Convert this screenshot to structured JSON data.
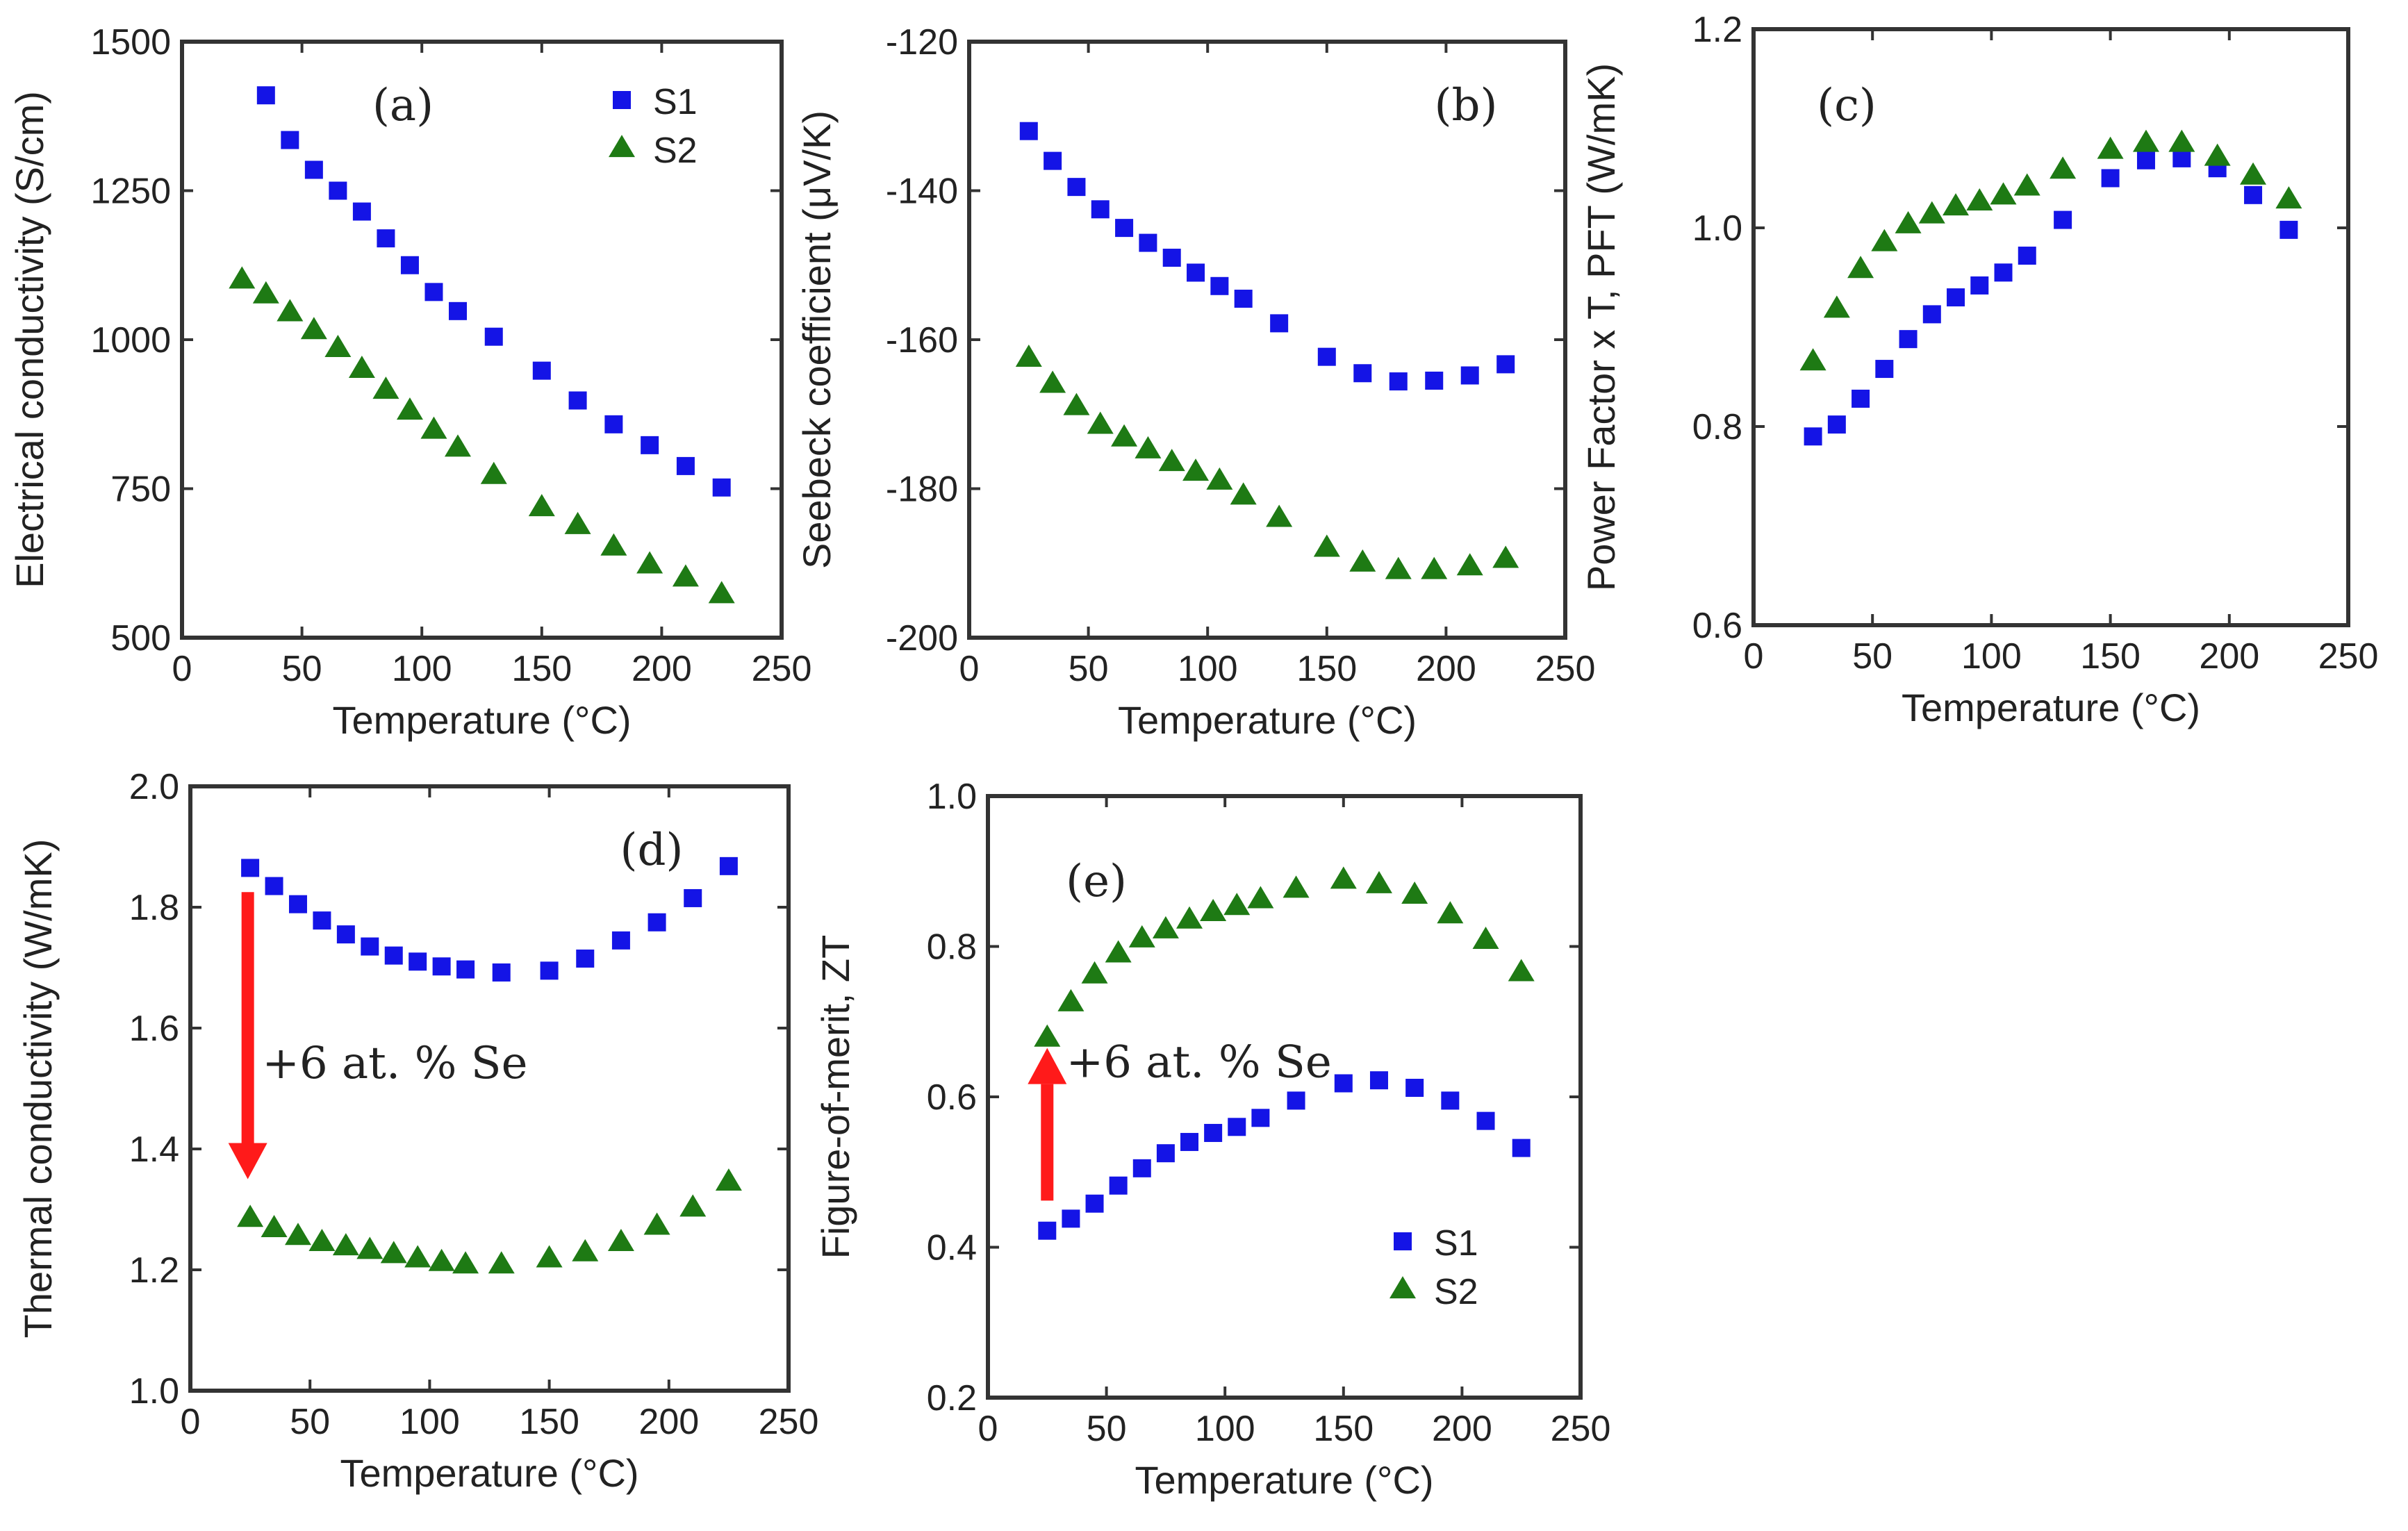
{
  "colors": {
    "s1": "#1414e6",
    "s2": "#1e7a14",
    "arrow": "#ff1a1a",
    "axis": "#333333"
  },
  "chart_data": [
    {
      "id": "a",
      "type": "scatter",
      "tag": "(a)",
      "xlabel": "Temperature (°C)",
      "ylabel": "Electrical conductivity (S/cm)",
      "xlim": [
        0,
        250
      ],
      "ylim": [
        500,
        1500
      ],
      "xticks": [
        0,
        50,
        100,
        150,
        200,
        250
      ],
      "yticks": [
        500,
        750,
        1000,
        1250,
        1500
      ],
      "legend": {
        "position": "top-right"
      },
      "series": [
        {
          "name": "S1",
          "marker": "square",
          "x": [
            35,
            45,
            55,
            65,
            75,
            85,
            95,
            105,
            115,
            130,
            150,
            165,
            180,
            195,
            210,
            225
          ],
          "y": [
            1410,
            1335,
            1285,
            1250,
            1215,
            1170,
            1125,
            1080,
            1048,
            1005,
            948,
            898,
            858,
            823,
            788,
            752
          ]
        },
        {
          "name": "S2",
          "marker": "triangle",
          "x": [
            25,
            35,
            45,
            55,
            65,
            75,
            85,
            95,
            105,
            115,
            130,
            150,
            165,
            180,
            195,
            210,
            225
          ],
          "y": [
            1100,
            1075,
            1045,
            1015,
            985,
            950,
            915,
            880,
            848,
            818,
            772,
            718,
            688,
            652,
            622,
            600,
            572
          ]
        }
      ],
      "notes": []
    },
    {
      "id": "b",
      "type": "scatter",
      "tag": "(b)",
      "xlabel": "Temperature (°C)",
      "ylabel": "Seebeck coefficient (μV/K)",
      "xlim": [
        0,
        250
      ],
      "ylim": [
        -200,
        -120
      ],
      "xticks": [
        0,
        50,
        100,
        150,
        200,
        250
      ],
      "yticks": [
        -200,
        -180,
        -160,
        -140,
        -120
      ],
      "series": [
        {
          "name": "S1",
          "marker": "square",
          "x": [
            25,
            35,
            45,
            55,
            65,
            75,
            85,
            95,
            105,
            115,
            130,
            150,
            165,
            180,
            195,
            210,
            225
          ],
          "y": [
            -132,
            -136,
            -139.5,
            -142.5,
            -145,
            -147,
            -149,
            -151,
            -152.8,
            -154.5,
            -157.8,
            -162.3,
            -164.5,
            -165.6,
            -165.5,
            -164.8,
            -163.3
          ]
        },
        {
          "name": "S2",
          "marker": "triangle",
          "x": [
            25,
            35,
            45,
            55,
            65,
            75,
            85,
            95,
            105,
            115,
            130,
            150,
            165,
            180,
            195,
            210,
            225
          ],
          "y": [
            -162.5,
            -166,
            -169,
            -171.5,
            -173.2,
            -174.8,
            -176.5,
            -177.8,
            -179,
            -181,
            -184,
            -188,
            -190,
            -191,
            -191,
            -190.5,
            -189.5
          ]
        }
      ],
      "notes": []
    },
    {
      "id": "c",
      "type": "scatter",
      "tag": "(c)",
      "xlabel": "Temperature (°C)",
      "ylabel": "Power Factor x T, PFT (W/mK)",
      "xlim": [
        0,
        250
      ],
      "ylim": [
        0.6,
        1.2
      ],
      "xticks": [
        0,
        50,
        100,
        150,
        200,
        250
      ],
      "yticks": [
        0.6,
        0.8,
        1.0,
        1.2
      ],
      "series": [
        {
          "name": "S1",
          "marker": "square",
          "x": [
            25,
            35,
            45,
            55,
            65,
            75,
            85,
            95,
            105,
            115,
            130,
            150,
            165,
            180,
            195,
            210,
            225
          ],
          "y": [
            0.79,
            0.802,
            0.828,
            0.858,
            0.888,
            0.913,
            0.93,
            0.942,
            0.955,
            0.972,
            1.008,
            1.05,
            1.068,
            1.07,
            1.06,
            1.033,
            0.998
          ]
        },
        {
          "name": "S2",
          "marker": "triangle",
          "x": [
            25,
            35,
            45,
            55,
            65,
            75,
            85,
            95,
            105,
            115,
            130,
            150,
            165,
            180,
            195,
            210,
            225
          ],
          "y": [
            0.865,
            0.918,
            0.958,
            0.985,
            1.003,
            1.013,
            1.021,
            1.026,
            1.032,
            1.041,
            1.058,
            1.078,
            1.085,
            1.085,
            1.071,
            1.052,
            1.028
          ]
        }
      ],
      "notes": []
    },
    {
      "id": "d",
      "type": "scatter",
      "tag": "(d)",
      "xlabel": "Temperature (°C)",
      "ylabel": "Thermal conductivity (W/mK)",
      "xlim": [
        0,
        250
      ],
      "ylim": [
        1.0,
        2.0
      ],
      "xticks": [
        0,
        50,
        100,
        150,
        200,
        250
      ],
      "yticks": [
        1.0,
        1.2,
        1.4,
        1.6,
        1.8,
        2.0
      ],
      "series": [
        {
          "name": "S1",
          "marker": "square",
          "x": [
            25,
            35,
            45,
            55,
            65,
            75,
            85,
            95,
            105,
            115,
            130,
            150,
            165,
            180,
            195,
            210,
            225
          ],
          "y": [
            1.865,
            1.835,
            1.805,
            1.778,
            1.755,
            1.735,
            1.72,
            1.71,
            1.702,
            1.697,
            1.692,
            1.695,
            1.715,
            1.745,
            1.775,
            1.815,
            1.868
          ]
        },
        {
          "name": "S2",
          "marker": "triangle",
          "x": [
            25,
            35,
            45,
            55,
            65,
            75,
            85,
            95,
            105,
            115,
            130,
            150,
            165,
            180,
            195,
            210,
            225
          ],
          "y": [
            1.285,
            1.268,
            1.255,
            1.245,
            1.238,
            1.232,
            1.225,
            1.218,
            1.212,
            1.208,
            1.208,
            1.218,
            1.228,
            1.245,
            1.272,
            1.302,
            1.345
          ]
        }
      ],
      "notes": [
        {
          "text": "+6 at. % Se",
          "x": 30,
          "y": 1.54
        }
      ],
      "arrow": {
        "direction": "down",
        "x": 24,
        "from": 1.825,
        "to": 1.35
      }
    },
    {
      "id": "e",
      "type": "scatter",
      "tag": "(e)",
      "xlabel": "Temperature (°C)",
      "ylabel": "Figure-of-merit, ZT",
      "xlim": [
        0,
        250
      ],
      "ylim": [
        0.2,
        1.0
      ],
      "xticks": [
        0,
        50,
        100,
        150,
        200,
        250
      ],
      "yticks": [
        0.2,
        0.4,
        0.6,
        0.8,
        1.0
      ],
      "legend": {
        "position": "bottom-right"
      },
      "series": [
        {
          "name": "S1",
          "marker": "square",
          "x": [
            25,
            35,
            45,
            55,
            65,
            75,
            85,
            95,
            105,
            115,
            130,
            150,
            165,
            180,
            195,
            210,
            225
          ],
          "y": [
            0.422,
            0.438,
            0.458,
            0.482,
            0.505,
            0.525,
            0.54,
            0.552,
            0.56,
            0.572,
            0.595,
            0.618,
            0.622,
            0.612,
            0.595,
            0.568,
            0.532
          ]
        },
        {
          "name": "S2",
          "marker": "triangle",
          "x": [
            25,
            35,
            45,
            55,
            65,
            75,
            85,
            95,
            105,
            115,
            130,
            150,
            165,
            180,
            195,
            210,
            225
          ],
          "y": [
            0.678,
            0.725,
            0.762,
            0.79,
            0.81,
            0.822,
            0.835,
            0.845,
            0.853,
            0.862,
            0.876,
            0.888,
            0.882,
            0.868,
            0.842,
            0.808,
            0.765
          ]
        }
      ],
      "notes": [
        {
          "text": "+6 at. % Se",
          "x": 33,
          "y": 0.645
        }
      ],
      "arrow": {
        "direction": "up",
        "x": 25,
        "from": 0.462,
        "to": 0.665
      }
    }
  ]
}
